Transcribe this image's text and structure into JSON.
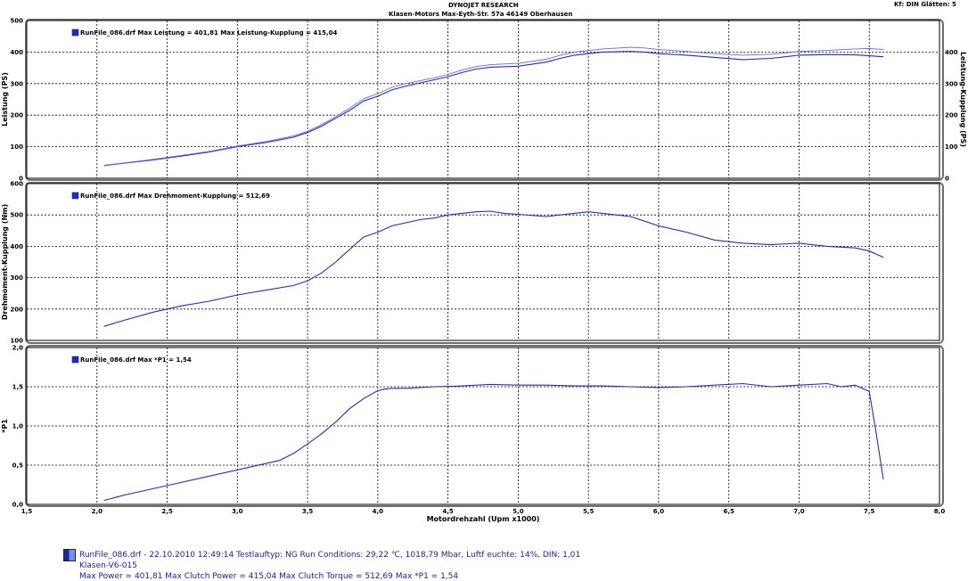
{
  "header": {
    "title": "DYNOJET RESEARCH",
    "address": "Klasen-Motors   Max-Eyth-Str. 57a   46149 Oberhausen",
    "corner": "Kf: DIN  Glätten: 5"
  },
  "footer": {
    "line1": "RunFile_086.drf - 22.10.2010 12:49:14  Testlauftyp: NG  Run Conditions: 29,22 ℃, 1018,79 Mbar,  Luftf euchte: 14%, DIN: 1,01",
    "line2": "Klasen-V6-015",
    "line3": "Max Power = 401,81  Max Clutch Power = 415,04  Max Clutch Torque = 512,69  Max *P1 = 1,54"
  },
  "colors": {
    "series": "#1c2cc8",
    "series_light": "#5a6ee0",
    "grid": "#000000",
    "panel_border": "#6f6f6f"
  },
  "chart_data": [
    {
      "type": "line",
      "ylabel": "Leistung (PS)",
      "ylabel_right": "Leistung-Kupplung (PS)",
      "legend": "RunFile_086.drf Max Leistung = 401,81   Max Leistung-Kupplung = 415,04",
      "legend_placement": "top-left",
      "ylim": [
        0,
        500
      ],
      "yticks": [
        0,
        100,
        200,
        300,
        400,
        500
      ],
      "ytick_labels": [
        "0",
        "100",
        "200",
        "300",
        "400",
        "500"
      ],
      "yticks_right": [
        0,
        100,
        200,
        300,
        400
      ],
      "ytick_labels_right": [
        "0",
        "100",
        "200",
        "300",
        "400"
      ],
      "grid": true,
      "series": [
        {
          "x": [
            2.05,
            2.2,
            2.4,
            2.6,
            2.8,
            3.0,
            3.2,
            3.4,
            3.5,
            3.6,
            3.7,
            3.8,
            3.9,
            4.0,
            4.1,
            4.2,
            4.3,
            4.4,
            4.5,
            4.6,
            4.7,
            4.8,
            5.0,
            5.2,
            5.3,
            5.4,
            5.6,
            5.8,
            5.9,
            6.0,
            6.2,
            6.4,
            6.6,
            6.8,
            7.0,
            7.2,
            7.4,
            7.5,
            7.6
          ],
          "y": [
            40,
            48,
            58,
            70,
            83,
            100,
            113,
            130,
            145,
            165,
            190,
            215,
            245,
            260,
            280,
            292,
            302,
            312,
            322,
            335,
            346,
            352,
            355,
            368,
            380,
            390,
            400,
            402,
            400,
            395,
            390,
            383,
            376,
            380,
            390,
            392,
            391,
            388,
            385
          ]
        },
        {
          "x": [
            2.05,
            2.2,
            2.4,
            2.6,
            2.8,
            3.0,
            3.2,
            3.4,
            3.5,
            3.6,
            3.7,
            3.8,
            3.9,
            4.0,
            4.1,
            4.2,
            4.3,
            4.4,
            4.5,
            4.6,
            4.7,
            4.8,
            5.0,
            5.2,
            5.3,
            5.4,
            5.6,
            5.8,
            5.9,
            6.0,
            6.2,
            6.4,
            6.6,
            6.8,
            7.0,
            7.2,
            7.4,
            7.5,
            7.6
          ],
          "y": [
            41,
            49,
            60,
            72,
            85,
            102,
            116,
            134,
            149,
            170,
            195,
            222,
            252,
            268,
            288,
            300,
            309,
            318,
            329,
            343,
            354,
            360,
            364,
            377,
            390,
            400,
            410,
            415,
            413,
            408,
            402,
            395,
            390,
            393,
            402,
            405,
            410,
            411,
            408
          ]
        }
      ]
    },
    {
      "type": "line",
      "ylabel": "Drehmoment-Kupplung (Nm)",
      "legend": "RunFile_086.drf Max Drehmoment-Kupplung = 512,69",
      "legend_placement": "top-left",
      "ylim": [
        100,
        600
      ],
      "yticks": [
        100,
        200,
        300,
        400,
        500,
        600
      ],
      "ytick_labels": [
        "100",
        "200",
        "300",
        "400",
        "500",
        "600"
      ],
      "grid": true,
      "series": [
        {
          "x": [
            2.05,
            2.2,
            2.4,
            2.6,
            2.8,
            3.0,
            3.2,
            3.4,
            3.5,
            3.6,
            3.7,
            3.8,
            3.9,
            4.0,
            4.1,
            4.2,
            4.3,
            4.4,
            4.5,
            4.6,
            4.7,
            4.8,
            4.9,
            5.0,
            5.2,
            5.3,
            5.4,
            5.5,
            5.6,
            5.7,
            5.8,
            5.9,
            6.0,
            6.2,
            6.4,
            6.6,
            6.8,
            7.0,
            7.2,
            7.4,
            7.5,
            7.6
          ],
          "y": [
            145,
            165,
            190,
            210,
            225,
            245,
            260,
            275,
            290,
            315,
            350,
            390,
            430,
            445,
            465,
            475,
            485,
            490,
            500,
            505,
            510,
            512,
            505,
            502,
            495,
            500,
            505,
            510,
            505,
            500,
            495,
            480,
            465,
            445,
            420,
            410,
            405,
            410,
            400,
            395,
            385,
            365
          ]
        }
      ]
    },
    {
      "type": "line",
      "ylabel": "*P1",
      "legend": "RunFile_086.drf Max *P1 = 1,54",
      "legend_placement": "top-left",
      "xlabel": "Motordrehzahl (Upm x1000)",
      "xlim": [
        1.5,
        8.0
      ],
      "xticks": [
        1.5,
        2.0,
        2.5,
        3.0,
        3.5,
        4.0,
        4.5,
        5.0,
        5.5,
        6.0,
        6.5,
        7.0,
        7.5,
        8.0
      ],
      "xtick_labels": [
        "1,5",
        "2,0",
        "2,5",
        "3,0",
        "3,5",
        "4,0",
        "4,5",
        "5,0",
        "5,5",
        "6,0",
        "6,5",
        "7,0",
        "7,5",
        "8,0"
      ],
      "ylim": [
        0,
        2.0
      ],
      "yticks": [
        0,
        0.5,
        1.0,
        1.5,
        2.0
      ],
      "ytick_labels": [
        "0,0",
        "0,5",
        "1,0",
        "1,5",
        "2,0"
      ],
      "grid": true,
      "series": [
        {
          "x": [
            2.05,
            2.2,
            2.4,
            2.6,
            2.8,
            3.0,
            3.1,
            3.2,
            3.3,
            3.4,
            3.5,
            3.6,
            3.7,
            3.8,
            3.9,
            4.0,
            4.05,
            4.1,
            4.2,
            4.4,
            4.6,
            4.8,
            5.0,
            5.2,
            5.4,
            5.6,
            5.8,
            6.0,
            6.2,
            6.4,
            6.6,
            6.8,
            7.0,
            7.2,
            7.3,
            7.4,
            7.5,
            7.55,
            7.6
          ],
          "y": [
            0.05,
            0.12,
            0.2,
            0.28,
            0.36,
            0.44,
            0.48,
            0.52,
            0.56,
            0.65,
            0.77,
            0.9,
            1.05,
            1.22,
            1.35,
            1.45,
            1.47,
            1.48,
            1.48,
            1.5,
            1.51,
            1.53,
            1.52,
            1.52,
            1.51,
            1.51,
            1.5,
            1.49,
            1.5,
            1.52,
            1.54,
            1.5,
            1.52,
            1.54,
            1.5,
            1.52,
            1.44,
            0.9,
            0.32
          ]
        }
      ]
    }
  ]
}
